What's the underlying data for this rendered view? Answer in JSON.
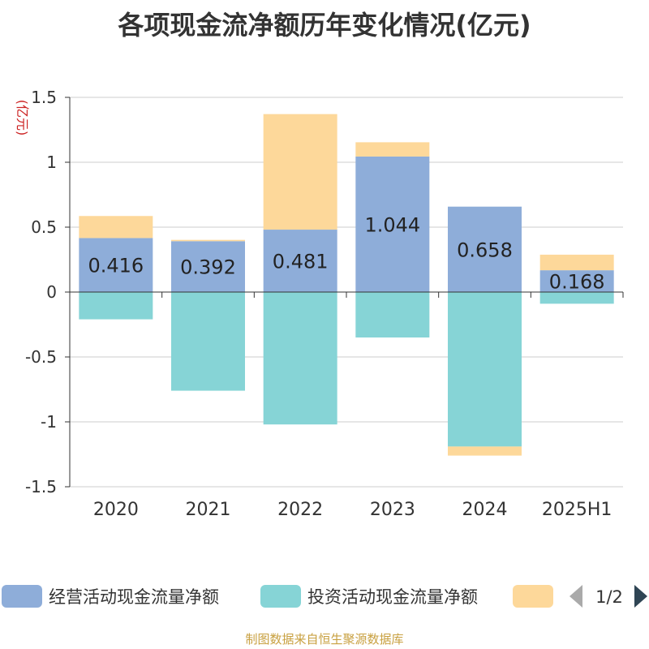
{
  "chart_data": {
    "type": "bar",
    "stacked": true,
    "title": "各项现金流净额历年变化情况(亿元)",
    "ylabel": "(亿元)",
    "ylim": [
      -1.5,
      1.5
    ],
    "yticks": [
      1.5,
      1,
      0.5,
      0,
      -0.5,
      -1,
      -1.5
    ],
    "ytick_labels": [
      "1.5",
      "1",
      "0.5",
      "0",
      "-0.5",
      "-1",
      "-1.5"
    ],
    "grid": true,
    "legend_position": "bottom",
    "categories": [
      "2020",
      "2021",
      "2022",
      "2023",
      "2024",
      "2025H1"
    ],
    "series": [
      {
        "name": "经营活动现金流量净额",
        "color": "#8eadd9",
        "values": [
          0.416,
          0.392,
          0.481,
          1.044,
          0.658,
          0.168
        ],
        "value_labels": [
          "0.416",
          "0.392",
          "0.481",
          "1.044",
          "0.658",
          "0.168"
        ]
      },
      {
        "name": "投资活动现金流量净额",
        "color": "#86d4d6",
        "values": [
          -0.21,
          -0.76,
          -1.02,
          -0.35,
          -1.19,
          -0.09
        ]
      },
      {
        "name": "",
        "color": "#fdd89a",
        "values": [
          0.17,
          0.01,
          0.89,
          0.11,
          -0.07,
          0.12
        ]
      }
    ]
  },
  "legend": {
    "page_indicator": "1/2"
  },
  "source_note": "制图数据来自恒生聚源数据库"
}
